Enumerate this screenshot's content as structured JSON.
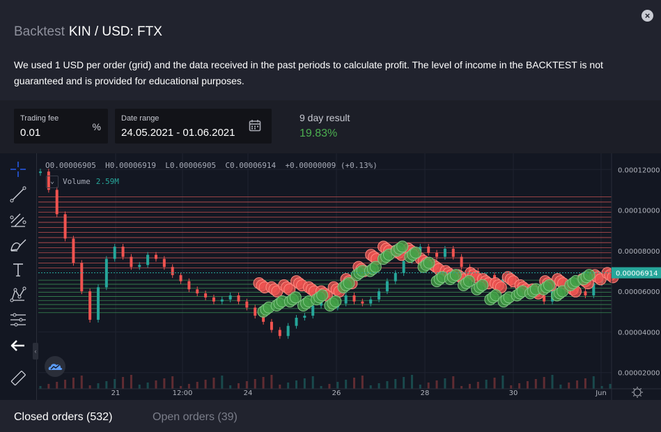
{
  "header": {
    "title_prefix": "Backtest",
    "title_pair": "KIN / USD: FTX",
    "close_icon": "close-icon",
    "description": "We used 1 USD per order (grid) and the data received in the past periods to calculate profit. The level of income in the BACKTEST is not guaranteed and is provided for educational purposes."
  },
  "controls": {
    "fee_label": "Trading fee",
    "fee_value": "0.01",
    "fee_suffix": "%",
    "range_label": "Date range",
    "range_value": "24.05.2021 - 01.06.2021",
    "result_label": "9 day result",
    "result_value": "19.83%"
  },
  "legend": {
    "open": "O0.00006905",
    "high": "H0.00006919",
    "low": "L0.00006905",
    "close": "C0.00006914",
    "change": "+0.00000009 (+0.13%)",
    "volume_label": "Volume",
    "volume_value": "2.59M"
  },
  "tabs": {
    "closed": "Closed orders (532)",
    "open": "Open orders (39)"
  },
  "colors": {
    "up": "#26a69a",
    "down": "#ef5350",
    "sell_line": "#e05a5a",
    "buy_line": "#3f9e5a",
    "result": "#4caf50",
    "price_tag": "#26a69a"
  },
  "chart_data": {
    "type": "line",
    "x_tick_labels": [
      "21",
      "12:00",
      "24",
      "26",
      "28",
      "30",
      "Jun"
    ],
    "y_tick_labels": [
      "0.00012000",
      "0.00010000",
      "0.00008000",
      "0.00006000",
      "0.00004000",
      "0.00002000"
    ],
    "ylim": [
      1.2e-05,
      0.000128
    ],
    "last_price_label": "0.00006914",
    "last_price": 6.914e-05,
    "grid_sell_levels": [
      0.0001065,
      0.000104,
      0.0001015,
      9.9e-05,
      9.65e-05,
      9.4e-05,
      9.15e-05,
      8.9e-05,
      8.65e-05,
      8.4e-05,
      8.15e-05,
      7.9e-05,
      7.65e-05,
      7.4e-05,
      7.15e-05
    ],
    "grid_buy_levels": [
      6.55e-05,
      6.35e-05,
      6.15e-05,
      5.95e-05,
      5.75e-05,
      5.55e-05,
      5.35e-05,
      5.15e-05,
      4.95e-05
    ],
    "price_series": [
      0.000119,
      0.00011,
      9.8e-05,
      8.6e-05,
      7.4e-05,
      6e-05,
      4.6e-05,
      6.2e-05,
      7.6e-05,
      8.2e-05,
      7.7e-05,
      7.2e-05,
      7.3e-05,
      7.8e-05,
      7.6e-05,
      7.2e-05,
      6.8e-05,
      6.5e-05,
      6.1e-05,
      5.9e-05,
      5.7e-05,
      5.5e-05,
      5.6e-05,
      5.8e-05,
      5.5e-05,
      5.2e-05,
      4.8e-05,
      4.5e-05,
      4.1e-05,
      3.8e-05,
      4.3e-05,
      4.7e-05,
      4.8e-05,
      5.3e-05,
      5.6e-05,
      5.2e-05,
      5.4e-05,
      5.8e-05,
      5.5e-05,
      5.4e-05,
      5.6e-05,
      6e-05,
      6.5e-05,
      6.9e-05,
      7.5e-05,
      8e-05,
      8.2e-05,
      7.9e-05,
      7.7e-05,
      8.1e-05,
      7.7e-05,
      7.2e-05,
      7e-05,
      6.6e-05,
      6.8e-05,
      6.4e-05,
      6.6e-05,
      6.3e-05,
      6.2e-05,
      6.1e-05,
      5.8e-05,
      5.5e-05,
      6e-05,
      6.3e-05,
      6.2e-05,
      6e-05,
      5.8e-05,
      6.4e-05,
      6.8e-05,
      6.914e-05
    ],
    "sell_fill_series": [
      6.4e-05,
      6.2e-05,
      6.3e-05,
      6.5e-05,
      6.2e-05,
      6e-05,
      6.2e-05,
      6.6e-05,
      7.2e-05,
      7.8e-05,
      8.2e-05,
      8e-05,
      8.1e-05,
      7.6e-05,
      7.3e-05,
      7e-05,
      6.8e-05,
      6.9e-05,
      6.6e-05,
      6.4e-05,
      6.7e-05,
      6.3e-05,
      6.1e-05,
      6.5e-05,
      6.6e-05,
      6.2e-05,
      6.6e-05,
      6.8e-05,
      6.9e-05
    ],
    "buy_fill_series": [
      5e-05,
      5.3e-05,
      5.5e-05,
      5.3e-05,
      5.6e-05,
      5.3e-05,
      6.2e-05,
      6.8e-05,
      7e-05,
      7.6e-05,
      8e-05,
      7.7e-05,
      7.2e-05,
      6.5e-05,
      6.6e-05,
      6.3e-05,
      6.1e-05,
      5.6e-05,
      5.5e-05,
      5.8e-05,
      5.9e-05,
      6.1e-05,
      5.8e-05,
      6.3e-05,
      6.6e-05
    ]
  },
  "tools": [
    "crosshair-icon",
    "trend-line-icon",
    "fib-icon",
    "brush-icon",
    "text-icon",
    "pattern-icon",
    "measure-icon",
    "back-arrow-icon",
    "ruler-icon"
  ]
}
